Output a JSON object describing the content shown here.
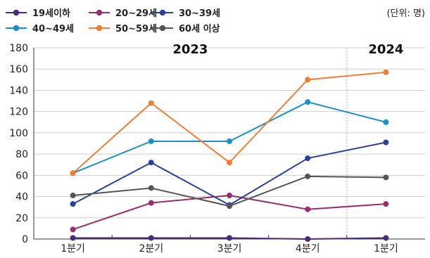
{
  "chart_data": {
    "type": "line",
    "unit_label": "(단위: 명)",
    "year_labels": [
      {
        "label": "2023",
        "span": [
          0,
          3
        ]
      },
      {
        "label": "2024",
        "span": [
          4,
          4
        ]
      }
    ],
    "categories": [
      "1분기",
      "2분기",
      "3분기",
      "4분기",
      "1분기"
    ],
    "ylim": [
      0,
      180
    ],
    "yticks": [
      0,
      20,
      40,
      60,
      80,
      100,
      120,
      140,
      160,
      180
    ],
    "grid": "horizontal",
    "legend_position": "top-left",
    "series": [
      {
        "name": "19세이하",
        "color": "#4a2b7a",
        "values": [
          1,
          1,
          1,
          0,
          1
        ]
      },
      {
        "name": "20~29세",
        "color": "#9b2d6a",
        "values": [
          9,
          34,
          41,
          28,
          33
        ]
      },
      {
        "name": "30~39세",
        "color": "#2c3f99",
        "values": [
          33,
          72,
          32,
          76,
          91
        ]
      },
      {
        "name": "40~49세",
        "color": "#1a8fc8",
        "values": [
          62,
          92,
          92,
          129,
          110
        ]
      },
      {
        "name": "50~59세",
        "color": "#ef7d34",
        "values": [
          62,
          128,
          72,
          150,
          157
        ]
      },
      {
        "name": "60세 이상",
        "color": "#555555",
        "values": [
          41,
          48,
          31,
          59,
          58
        ]
      }
    ]
  }
}
